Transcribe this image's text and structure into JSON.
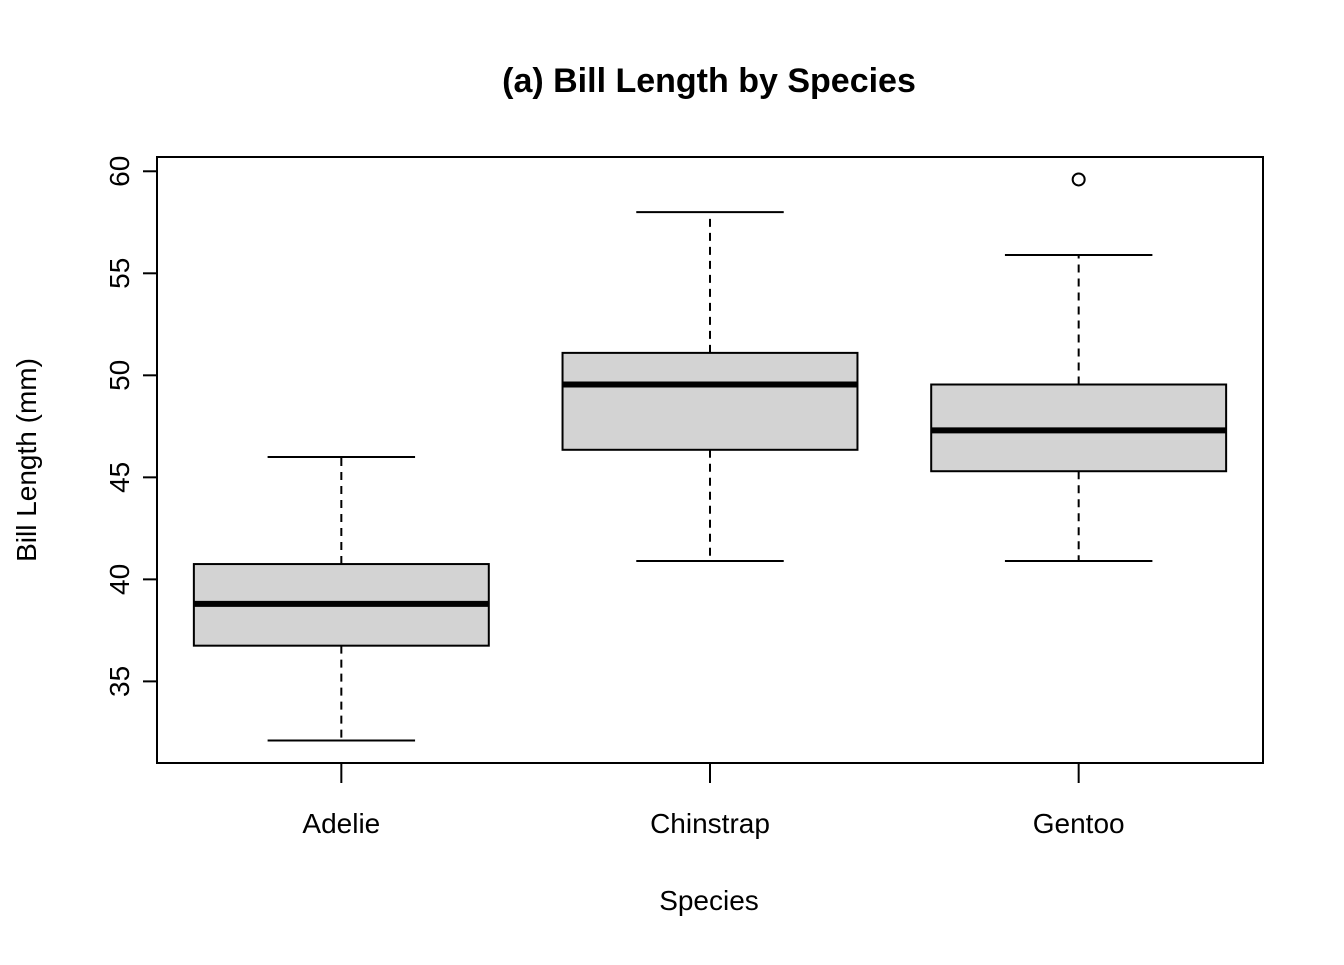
{
  "chart_data": {
    "type": "boxplot",
    "title": "(a) Bill Length by Species",
    "xlabel": "Species",
    "ylabel": "Bill Length (mm)",
    "categories": [
      "Adelie",
      "Chinstrap",
      "Gentoo"
    ],
    "ylim": [
      31,
      60.7
    ],
    "yticks": [
      "35",
      "40",
      "45",
      "50",
      "55",
      "60"
    ],
    "grid": false,
    "legend": "none",
    "box_fill": "#d3d3d3",
    "boxes": [
      {
        "category": "Adelie",
        "whisker_low": 32.1,
        "q1": 36.75,
        "median": 38.8,
        "q3": 40.75,
        "whisker_high": 46.0,
        "outliers": []
      },
      {
        "category": "Chinstrap",
        "whisker_low": 40.9,
        "q1": 46.35,
        "median": 49.55,
        "q3": 51.1,
        "whisker_high": 58.0,
        "outliers": []
      },
      {
        "category": "Gentoo",
        "whisker_low": 40.9,
        "q1": 45.3,
        "median": 47.3,
        "q3": 49.55,
        "whisker_high": 55.9,
        "outliers": [
          59.6
        ]
      }
    ]
  }
}
